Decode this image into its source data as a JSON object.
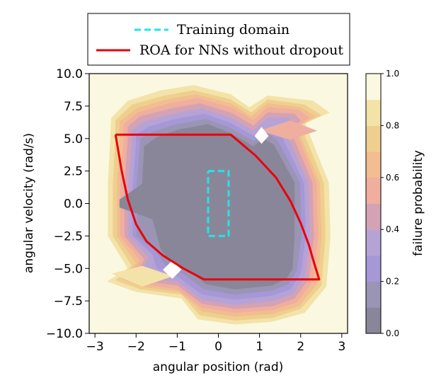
{
  "chart_data": {
    "type": "contour",
    "title": "",
    "xlabel": "angular position (rad)",
    "ylabel": "angular velocity (rad/s)",
    "xlim": [
      -3.14,
      3.14
    ],
    "ylim": [
      -10,
      10
    ],
    "xticks": [
      -3,
      -2,
      -1,
      0,
      1,
      2,
      3
    ],
    "xtick_labels": [
      "−3",
      "−2",
      "−1",
      "0",
      "1",
      "2",
      "3"
    ],
    "yticks": [
      -10,
      -7.5,
      -5,
      -2.5,
      0,
      2.5,
      5,
      7.5,
      10
    ],
    "ytick_labels": [
      "−10.0",
      "−7.5",
      "−5.0",
      "−2.5",
      "0.0",
      "2.5",
      "5.0",
      "7.5",
      "10.0"
    ],
    "colorbar": {
      "label": "failure probability",
      "range": [
        0,
        1
      ],
      "ticks": [
        0,
        0.2,
        0.4,
        0.6,
        0.8,
        1.0
      ],
      "tick_labels": [
        "0.0",
        "0.2",
        "0.4",
        "0.6",
        "0.8",
        "1.0"
      ],
      "level_colors": [
        "#8a8699",
        "#9a95b4",
        "#a697d7",
        "#b6a3d6",
        "#d3a2b5",
        "#efae9e",
        "#f2bd90",
        "#eecf8e",
        "#f3e3a8",
        "#faf8e1"
      ]
    },
    "contour_levels": [
      {
        "level": 0.9,
        "points": [
          [
            -2.75,
            5.3
          ],
          [
            -2.8,
            1.5
          ],
          [
            -2.8,
            -2.5
          ],
          [
            -2.3,
            -5.2
          ],
          [
            -2.9,
            -6.1
          ],
          [
            -2.1,
            -7.0
          ],
          [
            -0.8,
            -7.6
          ],
          [
            -0.6,
            -9.2
          ],
          [
            0.4,
            -9.6
          ],
          [
            1.3,
            -9.4
          ],
          [
            2.2,
            -8.6
          ],
          [
            2.75,
            -6.5
          ],
          [
            2.85,
            -2.5
          ],
          [
            2.8,
            1.5
          ],
          [
            2.2,
            6.3
          ],
          [
            2.9,
            7.2
          ],
          [
            2.5,
            8.2
          ],
          [
            1.2,
            8.6
          ],
          [
            0.7,
            7.8
          ],
          [
            0.3,
            8.8
          ],
          [
            -0.6,
            9.5
          ],
          [
            -1.5,
            9.1
          ],
          [
            -2.3,
            8.2
          ],
          [
            -2.7,
            6.8
          ]
        ]
      },
      {
        "level": 0.8,
        "points": [
          [
            -2.62,
            5.2
          ],
          [
            -2.68,
            1.5
          ],
          [
            -2.68,
            -2.5
          ],
          [
            -2.2,
            -5.0
          ],
          [
            -2.7,
            -6.0
          ],
          [
            -2.0,
            -6.8
          ],
          [
            -0.9,
            -7.3
          ],
          [
            -0.5,
            -8.9
          ],
          [
            0.4,
            -9.3
          ],
          [
            1.3,
            -9.1
          ],
          [
            2.1,
            -8.4
          ],
          [
            2.62,
            -6.4
          ],
          [
            2.72,
            -2.5
          ],
          [
            2.68,
            1.6
          ],
          [
            2.1,
            6.2
          ],
          [
            2.7,
            7.0
          ],
          [
            2.3,
            7.9
          ],
          [
            1.2,
            8.3
          ],
          [
            0.75,
            7.4
          ],
          [
            0.3,
            8.4
          ],
          [
            -0.6,
            9.1
          ],
          [
            -1.4,
            8.7
          ],
          [
            -2.2,
            7.9
          ],
          [
            -2.6,
            6.6
          ]
        ]
      },
      {
        "level": 0.7,
        "points": [
          [
            -2.5,
            5.1
          ],
          [
            -2.56,
            1.5
          ],
          [
            -2.56,
            -2.5
          ],
          [
            -2.1,
            -4.8
          ],
          [
            -2.5,
            -5.9
          ],
          [
            -1.9,
            -6.6
          ],
          [
            -0.9,
            -7.0
          ],
          [
            -0.45,
            -8.6
          ],
          [
            0.4,
            -9.0
          ],
          [
            1.3,
            -8.8
          ],
          [
            2.0,
            -8.1
          ],
          [
            2.5,
            -6.3
          ],
          [
            2.6,
            -2.5
          ],
          [
            2.56,
            1.6
          ],
          [
            2.0,
            6.0
          ],
          [
            2.5,
            6.8
          ],
          [
            2.1,
            7.6
          ],
          [
            1.2,
            8.0
          ],
          [
            0.8,
            7.0
          ],
          [
            0.3,
            8.0
          ],
          [
            -0.6,
            8.7
          ],
          [
            -1.3,
            8.3
          ],
          [
            -2.1,
            7.6
          ],
          [
            -2.5,
            6.4
          ]
        ]
      },
      {
        "level": 0.6,
        "points": [
          [
            -2.4,
            5.0
          ],
          [
            -2.46,
            1.5
          ],
          [
            -2.46,
            -2.5
          ],
          [
            -2.0,
            -4.6
          ],
          [
            -2.35,
            -5.8
          ],
          [
            -1.85,
            -6.4
          ],
          [
            -0.95,
            -6.8
          ],
          [
            -0.4,
            -8.3
          ],
          [
            0.4,
            -8.7
          ],
          [
            1.3,
            -8.5
          ],
          [
            1.95,
            -7.9
          ],
          [
            2.4,
            -6.2
          ],
          [
            2.5,
            -2.5
          ],
          [
            2.46,
            1.6
          ],
          [
            1.9,
            5.9
          ],
          [
            2.35,
            6.7
          ],
          [
            2.0,
            7.4
          ],
          [
            1.2,
            7.7
          ],
          [
            0.8,
            6.7
          ],
          [
            0.3,
            7.7
          ],
          [
            -0.55,
            8.4
          ],
          [
            -1.25,
            8.0
          ],
          [
            -2.0,
            7.3
          ],
          [
            -2.4,
            6.3
          ]
        ]
      },
      {
        "level": 0.5,
        "points": [
          [
            -2.3,
            4.9
          ],
          [
            -2.38,
            1.5
          ],
          [
            -2.38,
            -2.5
          ],
          [
            -1.9,
            -4.4
          ],
          [
            -2.2,
            -5.7
          ],
          [
            -1.8,
            -6.2
          ],
          [
            -1.0,
            -6.6
          ],
          [
            -0.4,
            -8.0
          ],
          [
            0.4,
            -8.4
          ],
          [
            1.3,
            -8.2
          ],
          [
            1.9,
            -7.6
          ],
          [
            2.3,
            -6.0
          ],
          [
            2.42,
            -2.5
          ],
          [
            2.38,
            1.6
          ],
          [
            1.85,
            5.8
          ],
          [
            2.2,
            6.6
          ],
          [
            1.95,
            7.2
          ],
          [
            1.2,
            7.4
          ],
          [
            0.85,
            6.4
          ],
          [
            0.3,
            7.4
          ],
          [
            -0.5,
            8.1
          ],
          [
            -1.2,
            7.7
          ],
          [
            -1.95,
            7.0
          ],
          [
            -2.3,
            6.1
          ]
        ]
      },
      {
        "level": 0.4,
        "points": [
          [
            -2.2,
            4.8
          ],
          [
            -2.28,
            1.5
          ],
          [
            -2.28,
            -2.5
          ],
          [
            -1.8,
            -4.3
          ],
          [
            -2.0,
            -5.5
          ],
          [
            -1.7,
            -6.0
          ],
          [
            -1.0,
            -6.3
          ],
          [
            -0.4,
            -7.7
          ],
          [
            0.4,
            -8.1
          ],
          [
            1.3,
            -7.9
          ],
          [
            1.85,
            -7.3
          ],
          [
            2.2,
            -5.8
          ],
          [
            2.32,
            -2.5
          ],
          [
            2.28,
            1.6
          ],
          [
            1.75,
            5.6
          ],
          [
            2.0,
            6.4
          ],
          [
            1.85,
            6.9
          ],
          [
            1.2,
            7.0
          ],
          [
            0.85,
            6.0
          ],
          [
            0.3,
            7.0
          ],
          [
            -0.45,
            7.7
          ],
          [
            -1.15,
            7.3
          ],
          [
            -1.9,
            6.7
          ],
          [
            -2.2,
            5.9
          ]
        ]
      },
      {
        "level": 0.3,
        "points": [
          [
            -2.1,
            4.7
          ],
          [
            -2.18,
            1.5
          ],
          [
            -2.18,
            -2.5
          ],
          [
            -1.7,
            -4.1
          ],
          [
            -1.85,
            -5.3
          ],
          [
            -1.6,
            -5.8
          ],
          [
            -1.0,
            -6.0
          ],
          [
            -0.4,
            -7.4
          ],
          [
            0.4,
            -7.8
          ],
          [
            1.3,
            -7.5
          ],
          [
            1.8,
            -7.0
          ],
          [
            2.1,
            -5.6
          ],
          [
            2.22,
            -2.5
          ],
          [
            2.18,
            1.6
          ],
          [
            1.65,
            5.4
          ],
          [
            1.85,
            6.1
          ],
          [
            1.7,
            6.6
          ],
          [
            1.2,
            6.6
          ],
          [
            0.85,
            5.6
          ],
          [
            0.3,
            6.6
          ],
          [
            -0.4,
            7.3
          ],
          [
            -1.1,
            6.9
          ],
          [
            -1.8,
            6.3
          ],
          [
            -2.1,
            5.6
          ]
        ]
      },
      {
        "level": 0.2,
        "points": [
          [
            -2.0,
            4.6
          ],
          [
            -2.08,
            1.5
          ],
          [
            -2.08,
            -2.5
          ],
          [
            -1.6,
            -3.9
          ],
          [
            -1.5,
            -5.0
          ],
          [
            -1.0,
            -5.6
          ],
          [
            -0.4,
            -7.0
          ],
          [
            0.4,
            -7.4
          ],
          [
            1.3,
            -7.1
          ],
          [
            1.75,
            -6.6
          ],
          [
            2.0,
            -5.4
          ],
          [
            2.12,
            -2.5
          ],
          [
            2.08,
            1.6
          ],
          [
            1.55,
            5.1
          ],
          [
            1.3,
            5.9
          ],
          [
            0.85,
            5.2
          ],
          [
            0.3,
            6.2
          ],
          [
            -0.35,
            6.9
          ],
          [
            -1.05,
            6.5
          ],
          [
            -1.7,
            5.9
          ],
          [
            -2.0,
            5.3
          ]
        ]
      },
      {
        "level": 0.1,
        "points": [
          [
            -1.9,
            4.5
          ],
          [
            -1.98,
            1.5
          ],
          [
            -1.98,
            -2.5
          ],
          [
            -1.5,
            -3.7
          ],
          [
            -1.3,
            -4.7
          ],
          [
            -0.9,
            -5.3
          ],
          [
            -0.35,
            -6.6
          ],
          [
            0.4,
            -7.0
          ],
          [
            1.3,
            -6.7
          ],
          [
            1.7,
            -6.2
          ],
          [
            1.9,
            -5.2
          ],
          [
            2.02,
            -2.5
          ],
          [
            1.98,
            1.6
          ],
          [
            1.45,
            4.8
          ],
          [
            1.2,
            5.4
          ],
          [
            0.85,
            4.8
          ],
          [
            0.3,
            5.8
          ],
          [
            -0.3,
            6.5
          ],
          [
            -1.0,
            6.1
          ],
          [
            -1.6,
            5.5
          ],
          [
            -1.9,
            5.0
          ]
        ]
      },
      {
        "level": 0.0,
        "points": [
          [
            -1.8,
            4.4
          ],
          [
            -1.85,
            1.5
          ],
          [
            -2.4,
            0.3
          ],
          [
            -2.4,
            -0.3
          ],
          [
            -1.6,
            -1.2
          ],
          [
            -1.4,
            -3.5
          ],
          [
            -1.2,
            -4.4
          ],
          [
            -0.8,
            -5.0
          ],
          [
            -0.3,
            -6.2
          ],
          [
            0.4,
            -6.6
          ],
          [
            1.3,
            -6.3
          ],
          [
            1.65,
            -5.8
          ],
          [
            1.8,
            -5.0
          ],
          [
            1.85,
            -2.5
          ],
          [
            1.85,
            1.6
          ],
          [
            1.35,
            4.5
          ],
          [
            1.1,
            5.0
          ],
          [
            0.85,
            4.4
          ],
          [
            0.3,
            5.4
          ],
          [
            -0.25,
            6.1
          ],
          [
            -0.95,
            5.7
          ],
          [
            -1.5,
            5.1
          ]
        ]
      }
    ],
    "peak_regions": [
      {
        "points": [
          [
            -2.6,
            -5.4
          ],
          [
            -1.85,
            -6.4
          ],
          [
            -1.1,
            -5.6
          ],
          [
            -1.85,
            -4.8
          ]
        ]
      },
      {
        "points": [
          [
            -1.35,
            -5.1
          ],
          [
            -1.12,
            -5.8
          ],
          [
            -0.9,
            -5.1
          ],
          [
            -1.12,
            -4.4
          ]
        ]
      },
      {
        "points": [
          [
            1.0,
            5.6
          ],
          [
            1.75,
            4.9
          ],
          [
            2.4,
            5.6
          ],
          [
            1.75,
            6.4
          ]
        ]
      },
      {
        "points": [
          [
            0.88,
            5.2
          ],
          [
            1.05,
            4.6
          ],
          [
            1.22,
            5.2
          ],
          [
            1.05,
            5.9
          ]
        ]
      }
    ],
    "peak_colors": [
      "#f3e3a8",
      "#ffffff",
      "#efae9e",
      "#ffffff"
    ],
    "series": [
      {
        "name": "Training domain",
        "style": "dashed",
        "color": "#22e5e5",
        "x": [
          -0.25,
          0.25,
          0.25,
          -0.25,
          -0.25
        ],
        "y": [
          2.5,
          2.5,
          -2.5,
          -2.5,
          2.5
        ]
      },
      {
        "name": "ROA for NNs without dropout",
        "style": "solid",
        "color": "#e8000b",
        "x": [
          -2.5,
          0.3,
          0.9,
          1.4,
          1.75,
          2.0,
          2.2,
          2.3,
          2.45,
          -0.35,
          -0.85,
          -1.35,
          -1.75,
          -2.0,
          -2.2,
          -2.35,
          -2.5
        ],
        "y": [
          5.3,
          5.3,
          3.7,
          2.0,
          0.2,
          -1.5,
          -3.2,
          -4.3,
          -5.85,
          -5.85,
          -5.0,
          -4.0,
          -2.9,
          -1.6,
          0.3,
          2.5,
          5.3
        ]
      }
    ],
    "legend": {
      "position": "top-center",
      "entries": [
        "Training domain",
        "ROA for NNs without dropout"
      ]
    }
  }
}
